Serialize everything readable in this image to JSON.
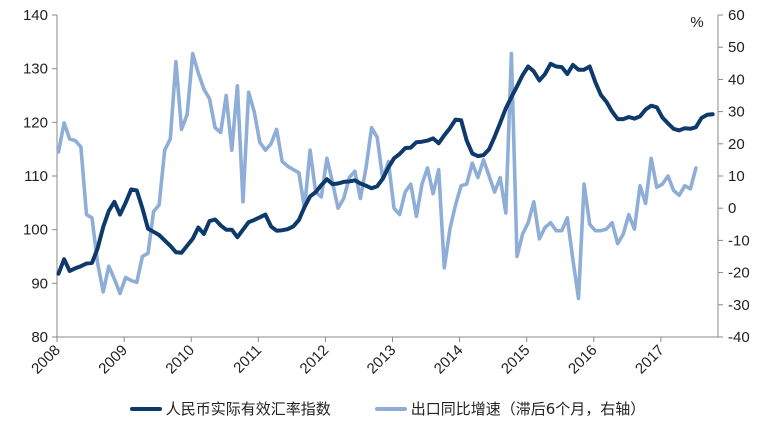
{
  "chart_data": {
    "type": "line",
    "title": "",
    "xlabel": "",
    "ylabel_left": "",
    "ylabel_right": "%",
    "x_ticks": [
      "2008",
      "2009",
      "2010",
      "2011",
      "2012",
      "2013",
      "2014",
      "2015",
      "2016",
      "2017"
    ],
    "ylim_left": [
      80,
      140
    ],
    "yticks_left": [
      80,
      90,
      100,
      110,
      120,
      130,
      140
    ],
    "ylim_right": [
      -40,
      60
    ],
    "yticks_right": [
      -40,
      -30,
      -20,
      -10,
      0,
      10,
      20,
      30,
      40,
      50,
      60
    ],
    "grid": false,
    "legend_position": "bottom",
    "series": [
      {
        "name": "人民币实际有效汇率指数",
        "axis": "left",
        "color": "#0d3a6b",
        "start": "2008-01",
        "frequency": "monthly",
        "values": [
          91.8,
          94.5,
          92.3,
          92.8,
          93.2,
          93.7,
          93.8,
          96.5,
          100.5,
          103.5,
          105.2,
          102.8,
          105.0,
          107.5,
          107.3,
          104.0,
          100.2,
          99.6,
          99.0,
          98.0,
          97.0,
          95.8,
          95.7,
          97.0,
          98.3,
          100.4,
          99.2,
          101.6,
          101.9,
          100.8,
          100.0,
          100.0,
          98.6,
          100.0,
          101.4,
          101.8,
          102.3,
          102.8,
          100.6,
          99.8,
          99.9,
          100.1,
          100.6,
          101.8,
          104.2,
          106.2,
          107.0,
          108.3,
          109.4,
          108.5,
          108.6,
          108.9,
          109.0,
          109.2,
          108.6,
          108.2,
          107.7,
          108.1,
          109.5,
          111.6,
          113.3,
          114.1,
          115.2,
          115.3,
          116.3,
          116.4,
          116.6,
          117.0,
          116.1,
          117.6,
          118.9,
          120.5,
          120.4,
          116.6,
          114.2,
          113.7,
          113.9,
          115.0,
          117.3,
          119.9,
          122.6,
          124.7,
          126.7,
          128.8,
          130.4,
          129.5,
          127.8,
          129.0,
          130.9,
          130.4,
          130.3,
          129.0,
          130.7,
          129.8,
          129.8,
          130.4,
          127.5,
          125.1,
          123.8,
          122.0,
          120.6,
          120.6,
          121.0,
          120.7,
          121.1,
          122.4,
          123.1,
          122.8,
          120.9,
          119.8,
          118.8,
          118.5,
          118.9,
          118.8,
          119.1,
          120.8,
          121.4,
          121.5
        ]
      },
      {
        "name": "出口同比增速（滞后6个月，右轴）",
        "axis": "right",
        "color": "#8eaed8",
        "start": "2008-01",
        "frequency": "monthly",
        "values": [
          17.5,
          26.5,
          21.5,
          21.0,
          19.0,
          -2.0,
          -3.0,
          -17.0,
          -26.0,
          -18.0,
          -22.0,
          -26.5,
          -21.5,
          -22.5,
          -23.0,
          -15.0,
          -14.0,
          -1.0,
          1.0,
          18.0,
          21.5,
          45.5,
          24.5,
          29.0,
          48.0,
          42.0,
          37.0,
          34.0,
          25.0,
          23.5,
          35.0,
          18.0,
          38.0,
          2.0,
          36.0,
          30.0,
          20.5,
          18.0,
          20.0,
          24.5,
          14.5,
          13.0,
          12.0,
          11.0,
          0.0,
          18.0,
          5.0,
          3.5,
          15.5,
          8.0,
          0.0,
          3.0,
          9.5,
          11.5,
          3.0,
          12.5,
          25.0,
          22.0,
          9.0,
          14.5,
          0.0,
          -2.0,
          5.0,
          7.5,
          -2.5,
          7.5,
          12.5,
          4.5,
          12.0,
          -18.5,
          -6.5,
          1.0,
          7.0,
          7.5,
          14.0,
          9.5,
          15.0,
          10.0,
          5.0,
          9.5,
          -1.5,
          48.0,
          -15.0,
          -8.0,
          -4.5,
          2.0,
          -9.5,
          -6.0,
          -4.5,
          -7.0,
          -7.0,
          -3.0,
          -16.0,
          -28.0,
          7.5,
          -5.0,
          -7.0,
          -7.0,
          -6.5,
          -4.5,
          -11.0,
          -8.0,
          -2.0,
          -6.5,
          7.0,
          1.5,
          15.5,
          6.5,
          7.5,
          10.0,
          5.5,
          4.0,
          7.0,
          6.0,
          12.5
        ]
      }
    ]
  },
  "axes": {
    "left_ticks": [
      "80",
      "90",
      "100",
      "110",
      "120",
      "130",
      "140"
    ],
    "right_ticks": [
      "-40",
      "-30",
      "-20",
      "-10",
      "0",
      "10",
      "20",
      "30",
      "40",
      "50",
      "60"
    ],
    "x_ticks": [
      "2008",
      "2009",
      "2010",
      "2011",
      "2012",
      "2013",
      "2014",
      "2015",
      "2016",
      "2017"
    ],
    "right_unit": "%"
  },
  "legend": {
    "items": [
      {
        "label": "人民币实际有效汇率指数",
        "color": "#0d3a6b"
      },
      {
        "label": "出口同比增速（滞后6个月，右轴）",
        "color": "#8eaed8"
      }
    ]
  }
}
